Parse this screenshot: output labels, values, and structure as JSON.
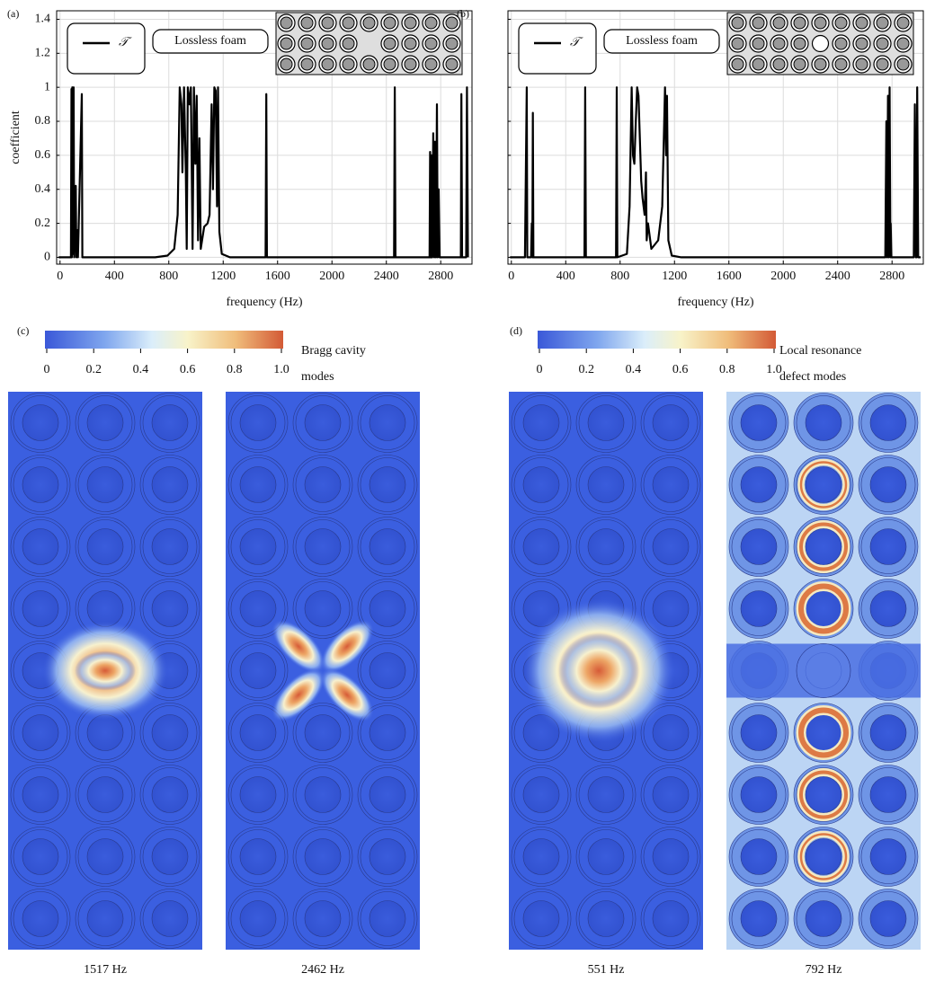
{
  "chart_data": [
    {
      "type": "line",
      "panel_label": "(a)",
      "xlabel": "frequency (Hz)",
      "ylabel": "coefficient",
      "annotation": "Lossless foam",
      "legend": "upper left",
      "grid": true,
      "defect": "empty",
      "x": [
        -10,
        80,
        84,
        87,
        90,
        94,
        100,
        104,
        116,
        120,
        128,
        132,
        160,
        164,
        700,
        790,
        840,
        865,
        880,
        893,
        900,
        912,
        925,
        932,
        940,
        952,
        962,
        975,
        985,
        995,
        1005,
        1015,
        1025,
        1035,
        1060,
        1085,
        1100,
        1115,
        1125,
        1135,
        1145,
        1155,
        1162,
        1172,
        1190,
        1250,
        1512,
        1517,
        1522,
        2457,
        2462,
        2467,
        2718,
        2722,
        2728,
        2733,
        2738,
        2745,
        2752,
        2758,
        2765,
        2772,
        2778,
        2785,
        2792,
        2948,
        2952,
        2957,
        2987,
        2993,
        3000
      ],
      "series": [
        {
          "name": "𝒯",
          "color": "#000000",
          "values": [
            0,
            0,
            0.99,
            0,
            1,
            0.02,
            1,
            0,
            0.42,
            0,
            0.16,
            0,
            0.96,
            0,
            0,
            0.01,
            0.05,
            0.25,
            1,
            0.9,
            0.5,
            1,
            0.5,
            0.05,
            1,
            0.9,
            1,
            0.05,
            1,
            0.55,
            0.95,
            0.1,
            0.7,
            0.05,
            0.18,
            0.2,
            0.25,
            0.9,
            0.4,
            1,
            0.98,
            0.3,
            1,
            0.15,
            0.02,
            0,
            0,
            0.96,
            0,
            0,
            1,
            0,
            0,
            0.62,
            0,
            0.6,
            0,
            0.73,
            0,
            0.68,
            0,
            0.9,
            0,
            0.4,
            0,
            0,
            0.96,
            0,
            0,
            1,
            0
          ]
        }
      ],
      "xlim": [
        -25,
        3030
      ],
      "xticks": [
        0,
        400,
        800,
        1200,
        1600,
        2000,
        2400,
        2800
      ],
      "ylim": [
        -0.04,
        1.45
      ],
      "yticks": [
        0,
        0.2,
        0.4,
        0.6,
        0.8,
        1,
        1.2,
        1.4
      ],
      "ytick_labels": true
    },
    {
      "type": "line",
      "panel_label": "(b)",
      "xlabel": "frequency (Hz)",
      "annotation": "Lossless foam",
      "legend": "upper left",
      "grid": true,
      "defect": "hollow",
      "x": [
        -10,
        100,
        113,
        117,
        145,
        150,
        154,
        158,
        162,
        538,
        543,
        548,
        770,
        775,
        780,
        850,
        870,
        885,
        895,
        905,
        915,
        925,
        935,
        945,
        955,
        965,
        980,
        990,
        995,
        1005,
        1030,
        1080,
        1110,
        1130,
        1138,
        1145,
        1155,
        1180,
        1250,
        2750,
        2758,
        2763,
        2770,
        2775,
        2782,
        2788,
        2790,
        2795,
        2960,
        2968,
        2975,
        2980,
        2985,
        2992,
        3010
      ],
      "series": [
        {
          "name": "𝒯",
          "color": "#000000",
          "values": [
            0,
            0,
            1,
            0,
            0,
            0.2,
            0,
            0.85,
            0,
            0,
            1,
            0,
            0,
            1,
            0,
            0.02,
            0.3,
            1,
            0.6,
            0.55,
            0.8,
            1,
            0.95,
            0.7,
            0.45,
            0.35,
            0.25,
            0.5,
            0.1,
            0.2,
            0.05,
            0.1,
            0.3,
            1,
            0.6,
            0.95,
            0.1,
            0.01,
            0,
            0,
            0.8,
            0,
            0.95,
            0,
            1,
            0,
            0.2,
            0,
            0,
            0.9,
            0,
            0,
            1,
            0,
            0
          ]
        }
      ],
      "xlim": [
        -25,
        3030
      ],
      "xticks": [
        0,
        400,
        800,
        1200,
        1600,
        2000,
        2400,
        2800
      ],
      "ylim": [
        -0.04,
        1.45
      ],
      "yticks": [
        0,
        0.2,
        0.4,
        0.6,
        0.8,
        1,
        1.2,
        1.4
      ],
      "ytick_labels": false
    }
  ],
  "field_panels": [
    {
      "label": "(c)",
      "title_lines": [
        "Bragg cavity",
        "modes"
      ],
      "colorbar": {
        "lim": [
          0,
          1
        ],
        "ticks": [
          0,
          0.2,
          0.4,
          0.6,
          0.8,
          {
            "value": 1,
            "label": "1.0"
          }
        ]
      },
      "maps": [
        {
          "caption": "1517 Hz"
        },
        {
          "caption": "2462 Hz"
        }
      ]
    },
    {
      "label": "(d)",
      "title_lines": [
        "Local resonance",
        "defect modes"
      ],
      "colorbar": {
        "lim": [
          0,
          1
        ],
        "ticks": [
          0,
          0.2,
          0.4,
          0.6,
          0.8,
          {
            "value": 1,
            "label": "1.0"
          }
        ]
      },
      "maps": [
        {
          "caption": "551 Hz"
        },
        {
          "caption": "792 Hz"
        }
      ]
    }
  ]
}
